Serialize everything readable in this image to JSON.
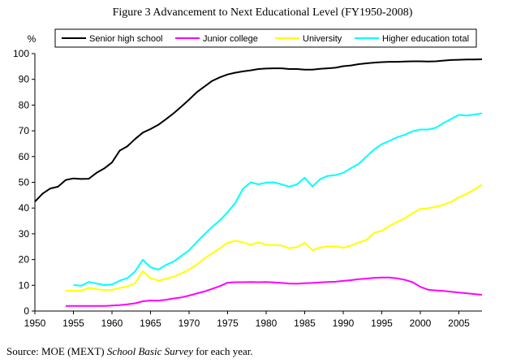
{
  "chart_data": {
    "type": "line",
    "title": "Figure 3 Advancement to Next Educational Level (FY1950-2008)",
    "ylabel": "%",
    "xlim": [
      1950,
      2008
    ],
    "ylim": [
      0,
      100
    ],
    "xticks": [
      "1950",
      "1955",
      "1960",
      "1965",
      "1970",
      "1975",
      "1980",
      "1985",
      "1990",
      "1995",
      "2000",
      "2005"
    ],
    "yticks": [
      "0",
      "10",
      "20",
      "30",
      "40",
      "50",
      "60",
      "70",
      "80",
      "90",
      "100"
    ],
    "grid": false,
    "legend": "top",
    "series": [
      {
        "name": "Senior high school",
        "color": "#000000",
        "x": [
          1950,
          1951,
          1952,
          1953,
          1954,
          1955,
          1956,
          1957,
          1958,
          1959,
          1960,
          1961,
          1962,
          1963,
          1964,
          1965,
          1966,
          1967,
          1968,
          1969,
          1970,
          1971,
          1972,
          1973,
          1974,
          1975,
          1976,
          1977,
          1978,
          1979,
          1980,
          1981,
          1982,
          1983,
          1984,
          1985,
          1986,
          1987,
          1988,
          1989,
          1990,
          1991,
          1992,
          1993,
          1994,
          1995,
          1996,
          1997,
          1998,
          1999,
          2000,
          2001,
          2002,
          2003,
          2004,
          2005,
          2006,
          2007,
          2008
        ],
        "values": [
          42.5,
          45.6,
          47.6,
          48.3,
          50.9,
          51.5,
          51.3,
          51.4,
          53.7,
          55.4,
          57.7,
          62.3,
          64.0,
          66.8,
          69.3,
          70.7,
          72.3,
          74.5,
          76.8,
          79.4,
          82.1,
          85.0,
          87.2,
          89.4,
          90.8,
          91.9,
          92.6,
          93.1,
          93.5,
          94.0,
          94.2,
          94.3,
          94.3,
          94.0,
          94.0,
          93.8,
          93.8,
          94.1,
          94.3,
          94.5,
          95.1,
          95.4,
          95.9,
          96.2,
          96.5,
          96.7,
          96.8,
          96.8,
          96.9,
          97.0,
          97.0,
          96.9,
          97.0,
          97.3,
          97.5,
          97.6,
          97.7,
          97.7,
          97.8
        ]
      },
      {
        "name": "Junior college",
        "color": "#ff00ff",
        "x": [
          1954,
          1955,
          1956,
          1957,
          1958,
          1959,
          1960,
          1961,
          1962,
          1963,
          1964,
          1965,
          1966,
          1967,
          1968,
          1969,
          1970,
          1971,
          1972,
          1973,
          1974,
          1975,
          1976,
          1977,
          1978,
          1979,
          1980,
          1981,
          1982,
          1983,
          1984,
          1985,
          1986,
          1987,
          1988,
          1989,
          1990,
          1991,
          1992,
          1993,
          1994,
          1995,
          1996,
          1997,
          1998,
          1999,
          2000,
          2001,
          2002,
          2003,
          2004,
          2005,
          2006,
          2007,
          2008
        ],
        "values": [
          2.0,
          2.0,
          2.0,
          2.0,
          2.0,
          2.0,
          2.1,
          2.3,
          2.6,
          3.0,
          3.8,
          4.1,
          4.0,
          4.4,
          4.9,
          5.3,
          6.0,
          6.8,
          7.6,
          8.6,
          9.7,
          11.0,
          11.2,
          11.2,
          11.3,
          11.2,
          11.3,
          11.1,
          10.9,
          10.7,
          10.6,
          10.8,
          10.9,
          11.1,
          11.3,
          11.4,
          11.7,
          12.0,
          12.4,
          12.6,
          12.9,
          13.0,
          13.0,
          12.7,
          12.1,
          11.2,
          9.4,
          8.3,
          8.0,
          7.8,
          7.5,
          7.2,
          6.9,
          6.6,
          6.3
        ]
      },
      {
        "name": "University",
        "color": "#ffff00",
        "x": [
          1954,
          1955,
          1956,
          1957,
          1958,
          1959,
          1960,
          1961,
          1962,
          1963,
          1964,
          1965,
          1966,
          1967,
          1968,
          1969,
          1970,
          1971,
          1972,
          1973,
          1974,
          1975,
          1976,
          1977,
          1978,
          1979,
          1980,
          1981,
          1982,
          1983,
          1984,
          1985,
          1986,
          1987,
          1988,
          1989,
          1990,
          1991,
          1992,
          1993,
          1994,
          1995,
          1996,
          1997,
          1998,
          1999,
          2000,
          2001,
          2002,
          2003,
          2004,
          2005,
          2006,
          2007,
          2008
        ],
        "values": [
          7.9,
          7.9,
          7.9,
          9.0,
          8.5,
          8.2,
          8.2,
          9.0,
          9.6,
          10.8,
          15.5,
          12.8,
          11.8,
          12.5,
          13.3,
          14.6,
          16.1,
          18.0,
          20.4,
          22.4,
          24.4,
          26.5,
          27.3,
          26.7,
          25.7,
          26.7,
          25.7,
          25.6,
          25.5,
          24.4,
          24.8,
          26.5,
          23.6,
          24.7,
          25.1,
          25.1,
          24.6,
          25.4,
          26.6,
          27.6,
          30.4,
          31.2,
          33.1,
          34.6,
          36.1,
          38.0,
          39.7,
          39.9,
          40.5,
          41.3,
          42.4,
          44.2,
          45.5,
          47.2,
          49.1
        ]
      },
      {
        "name": "Higher education total",
        "color": "#00ffff",
        "x": [
          1955,
          1956,
          1957,
          1958,
          1959,
          1960,
          1961,
          1962,
          1963,
          1964,
          1965,
          1966,
          1967,
          1968,
          1969,
          1970,
          1971,
          1972,
          1973,
          1974,
          1975,
          1976,
          1977,
          1978,
          1979,
          1980,
          1981,
          1982,
          1983,
          1984,
          1985,
          1986,
          1987,
          1988,
          1989,
          1990,
          1991,
          1992,
          1993,
          1994,
          1995,
          1996,
          1997,
          1998,
          1999,
          2000,
          2001,
          2002,
          2003,
          2004,
          2005,
          2006,
          2007,
          2008
        ],
        "values": [
          10.1,
          9.8,
          11.3,
          10.7,
          10.1,
          10.3,
          11.8,
          12.8,
          15.4,
          19.9,
          17.0,
          16.1,
          17.9,
          19.2,
          21.4,
          23.6,
          26.8,
          29.8,
          32.7,
          35.2,
          38.4,
          42.0,
          47.5,
          50.0,
          49.2,
          49.9,
          50.0,
          49.2,
          48.3,
          49.2,
          51.8,
          48.4,
          51.2,
          52.5,
          52.8,
          53.7,
          55.5,
          57.2,
          60.0,
          62.7,
          64.8,
          66.1,
          67.5,
          68.5,
          69.8,
          70.5,
          70.5,
          71.2,
          73.0,
          74.6,
          76.2,
          75.9,
          76.3,
          76.8
        ]
      }
    ]
  },
  "source": {
    "prefix": "Source:  MOE (MEXT) ",
    "italic": "School Basic Survey",
    "suffix": " for each year."
  }
}
